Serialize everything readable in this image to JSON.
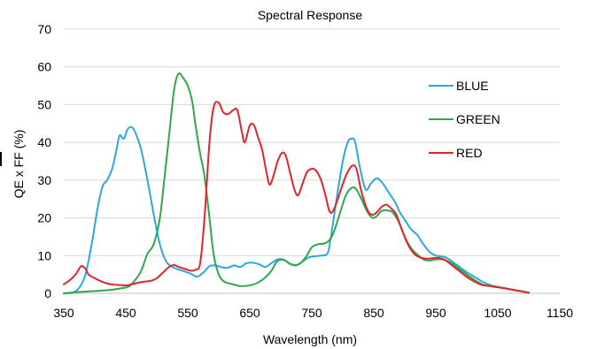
{
  "chart_data": {
    "type": "line",
    "title": "Spectral Response",
    "xlabel": "Wavelength (nm)",
    "ylabel": "QE x FF (%)",
    "xlim": [
      350,
      1150
    ],
    "ylim": [
      0,
      70
    ],
    "x_ticks": [
      "350",
      "450",
      "550",
      "650",
      "750",
      "850",
      "950",
      "1050",
      "1150"
    ],
    "y_ticks": [
      "0",
      "10",
      "20",
      "30",
      "40",
      "50",
      "60",
      "70"
    ],
    "grid": "horizontal",
    "legend_position": "right",
    "series": [
      {
        "name": "BLUE",
        "color": "#2EA8DB",
        "points": [
          [
            350,
            0
          ],
          [
            365,
            0.2
          ],
          [
            375,
            1.5
          ],
          [
            385,
            5
          ],
          [
            395,
            13
          ],
          [
            405,
            23
          ],
          [
            413,
            28.5
          ],
          [
            420,
            30
          ],
          [
            428,
            33
          ],
          [
            435,
            38
          ],
          [
            440,
            41.8
          ],
          [
            447,
            41
          ],
          [
            453,
            43.5
          ],
          [
            460,
            44
          ],
          [
            467,
            42
          ],
          [
            475,
            38
          ],
          [
            485,
            30
          ],
          [
            495,
            21
          ],
          [
            505,
            13
          ],
          [
            515,
            8.5
          ],
          [
            525,
            7
          ],
          [
            535,
            6.3
          ],
          [
            545,
            5.8
          ],
          [
            555,
            5.2
          ],
          [
            565,
            4.4
          ],
          [
            575,
            5.5
          ],
          [
            585,
            7.2
          ],
          [
            595,
            7.4
          ],
          [
            605,
            6.9
          ],
          [
            615,
            6.8
          ],
          [
            625,
            7.4
          ],
          [
            635,
            7
          ],
          [
            645,
            8
          ],
          [
            655,
            8.1
          ],
          [
            665,
            7.7
          ],
          [
            675,
            7
          ],
          [
            685,
            8
          ],
          [
            695,
            9
          ],
          [
            705,
            8.9
          ],
          [
            715,
            7.8
          ],
          [
            725,
            7.4
          ],
          [
            735,
            8.4
          ],
          [
            745,
            9.5
          ],
          [
            755,
            9.8
          ],
          [
            765,
            10
          ],
          [
            775,
            10.5
          ],
          [
            780,
            14
          ],
          [
            790,
            25
          ],
          [
            800,
            35
          ],
          [
            808,
            40
          ],
          [
            815,
            41
          ],
          [
            820,
            40
          ],
          [
            828,
            33
          ],
          [
            837,
            27.5
          ],
          [
            845,
            29
          ],
          [
            855,
            30.5
          ],
          [
            865,
            29
          ],
          [
            875,
            26.5
          ],
          [
            885,
            24
          ],
          [
            892,
            21.5
          ],
          [
            900,
            19.5
          ],
          [
            910,
            17
          ],
          [
            920,
            15.5
          ],
          [
            930,
            13
          ],
          [
            940,
            11
          ],
          [
            950,
            10
          ],
          [
            960,
            9.8
          ],
          [
            970,
            9.2
          ],
          [
            980,
            8
          ],
          [
            990,
            6.8
          ],
          [
            1000,
            5.6
          ],
          [
            1010,
            4.6
          ],
          [
            1020,
            3.6
          ],
          [
            1030,
            2.7
          ],
          [
            1040,
            2.1
          ],
          [
            1050,
            1.7
          ],
          [
            1060,
            1.4
          ],
          [
            1070,
            1.1
          ],
          [
            1080,
            0.8
          ],
          [
            1090,
            0.5
          ],
          [
            1100,
            0.2
          ]
        ]
      },
      {
        "name": "GREEN",
        "color": "#2DA84B",
        "points": [
          [
            350,
            0
          ],
          [
            370,
            0.3
          ],
          [
            390,
            0.5
          ],
          [
            410,
            0.7
          ],
          [
            430,
            1
          ],
          [
            445,
            1.4
          ],
          [
            455,
            1.8
          ],
          [
            465,
            3.5
          ],
          [
            475,
            6
          ],
          [
            485,
            10.5
          ],
          [
            495,
            13
          ],
          [
            505,
            20
          ],
          [
            512,
            30
          ],
          [
            520,
            42
          ],
          [
            528,
            54
          ],
          [
            535,
            58.2
          ],
          [
            543,
            57
          ],
          [
            550,
            55
          ],
          [
            557,
            51
          ],
          [
            563,
            44
          ],
          [
            570,
            37
          ],
          [
            577,
            31
          ],
          [
            585,
            20
          ],
          [
            592,
            10
          ],
          [
            600,
            5
          ],
          [
            607,
            3.3
          ],
          [
            615,
            2.7
          ],
          [
            625,
            2.3
          ],
          [
            635,
            1.9
          ],
          [
            645,
            2
          ],
          [
            655,
            2.3
          ],
          [
            665,
            3
          ],
          [
            675,
            4.2
          ],
          [
            685,
            6
          ],
          [
            693,
            8.3
          ],
          [
            700,
            8.9
          ],
          [
            707,
            8.7
          ],
          [
            715,
            7.8
          ],
          [
            725,
            7.5
          ],
          [
            733,
            8.2
          ],
          [
            742,
            10
          ],
          [
            750,
            12.2
          ],
          [
            760,
            13
          ],
          [
            770,
            13.2
          ],
          [
            778,
            14
          ],
          [
            785,
            16
          ],
          [
            795,
            21
          ],
          [
            805,
            26
          ],
          [
            815,
            28
          ],
          [
            822,
            27.5
          ],
          [
            830,
            25
          ],
          [
            840,
            21.5
          ],
          [
            848,
            20
          ],
          [
            855,
            20.5
          ],
          [
            862,
            21.8
          ],
          [
            870,
            22
          ],
          [
            880,
            21.5
          ],
          [
            890,
            19
          ],
          [
            900,
            15
          ],
          [
            910,
            12
          ],
          [
            920,
            10.3
          ],
          [
            930,
            9
          ],
          [
            940,
            8.7
          ],
          [
            950,
            9
          ],
          [
            960,
            9
          ],
          [
            970,
            8.5
          ],
          [
            980,
            7.5
          ],
          [
            990,
            6.2
          ],
          [
            1000,
            5
          ],
          [
            1010,
            3.8
          ],
          [
            1020,
            2.8
          ],
          [
            1030,
            2.1
          ],
          [
            1040,
            1.9
          ],
          [
            1050,
            1.7
          ],
          [
            1060,
            1.4
          ],
          [
            1070,
            1.1
          ],
          [
            1080,
            0.8
          ],
          [
            1090,
            0.5
          ],
          [
            1100,
            0.2
          ]
        ]
      },
      {
        "name": "RED",
        "color": "#E0262A",
        "points": [
          [
            350,
            2.4
          ],
          [
            360,
            3.5
          ],
          [
            370,
            5.2
          ],
          [
            378,
            7.2
          ],
          [
            385,
            6.5
          ],
          [
            390,
            5
          ],
          [
            400,
            4
          ],
          [
            410,
            3.2
          ],
          [
            420,
            2.6
          ],
          [
            430,
            2.3
          ],
          [
            440,
            2.2
          ],
          [
            450,
            2.1
          ],
          [
            460,
            2.4
          ],
          [
            470,
            2.8
          ],
          [
            480,
            3.1
          ],
          [
            490,
            3.3
          ],
          [
            500,
            4
          ],
          [
            510,
            5.5
          ],
          [
            520,
            7
          ],
          [
            528,
            7.5
          ],
          [
            535,
            7
          ],
          [
            545,
            6.5
          ],
          [
            555,
            6
          ],
          [
            563,
            6.3
          ],
          [
            570,
            8
          ],
          [
            577,
            20
          ],
          [
            585,
            40
          ],
          [
            592,
            49.5
          ],
          [
            600,
            50.5
          ],
          [
            607,
            48
          ],
          [
            615,
            47.5
          ],
          [
            623,
            48.5
          ],
          [
            630,
            48.5
          ],
          [
            637,
            43
          ],
          [
            642,
            40
          ],
          [
            650,
            44.5
          ],
          [
            657,
            44.5
          ],
          [
            663,
            41.5
          ],
          [
            670,
            38
          ],
          [
            677,
            32
          ],
          [
            682,
            28.8
          ],
          [
            688,
            31
          ],
          [
            695,
            35
          ],
          [
            702,
            37.2
          ],
          [
            708,
            36.5
          ],
          [
            715,
            32
          ],
          [
            722,
            27.5
          ],
          [
            728,
            26
          ],
          [
            735,
            29
          ],
          [
            742,
            32
          ],
          [
            750,
            33
          ],
          [
            757,
            32.5
          ],
          [
            765,
            30
          ],
          [
            772,
            26
          ],
          [
            778,
            22
          ],
          [
            783,
            21.5
          ],
          [
            790,
            24
          ],
          [
            798,
            28
          ],
          [
            806,
            31.5
          ],
          [
            815,
            33.8
          ],
          [
            822,
            33
          ],
          [
            830,
            27
          ],
          [
            840,
            22
          ],
          [
            848,
            20.8
          ],
          [
            855,
            21.5
          ],
          [
            862,
            22.8
          ],
          [
            870,
            23.5
          ],
          [
            878,
            22.5
          ],
          [
            886,
            21
          ],
          [
            895,
            17
          ],
          [
            905,
            13
          ],
          [
            915,
            10.5
          ],
          [
            925,
            9.5
          ],
          [
            935,
            9.2
          ],
          [
            945,
            9.3
          ],
          [
            955,
            9.4
          ],
          [
            965,
            8.8
          ],
          [
            975,
            7.6
          ],
          [
            985,
            6.3
          ],
          [
            995,
            5
          ],
          [
            1005,
            3.8
          ],
          [
            1015,
            2.9
          ],
          [
            1025,
            2.2
          ],
          [
            1035,
            2
          ],
          [
            1045,
            1.7
          ],
          [
            1055,
            1.5
          ],
          [
            1065,
            1.2
          ],
          [
            1075,
            0.9
          ],
          [
            1085,
            0.6
          ],
          [
            1095,
            0.3
          ],
          [
            1100,
            0.1
          ]
        ]
      }
    ]
  }
}
